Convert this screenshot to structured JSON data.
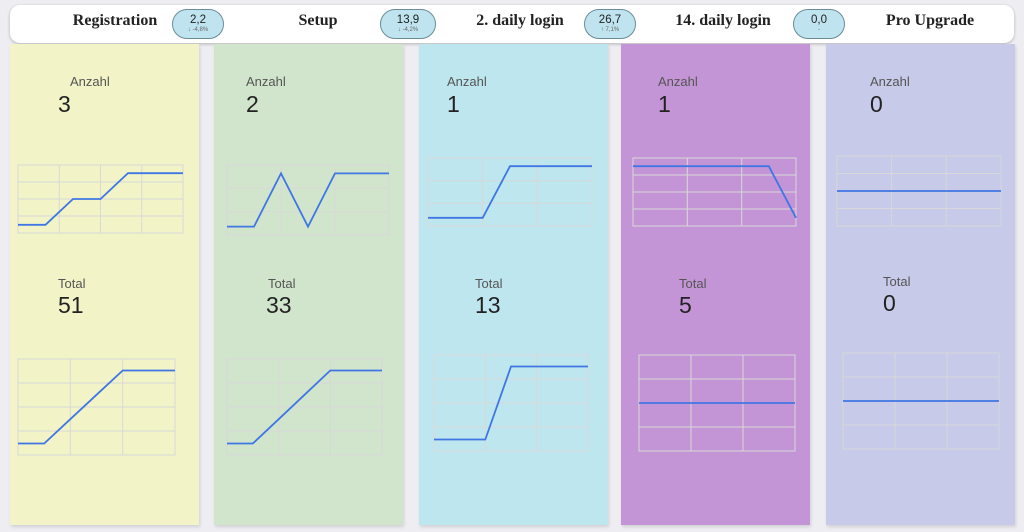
{
  "stages": [
    {
      "title": "Registration",
      "color": "#f2f4c8",
      "badge": {
        "value": "2,2",
        "delta": "↓ -4,8%"
      },
      "anzahl_label": "Anzahl",
      "anzahl_value": "3",
      "total_label": "Total",
      "total_value": "51",
      "spark1": [
        {
          "x": 0,
          "y": 0
        },
        {
          "x": 1,
          "y": 0
        },
        {
          "x": 2,
          "y": 1
        },
        {
          "x": 3,
          "y": 1
        },
        {
          "x": 4,
          "y": 2
        },
        {
          "x": 5,
          "y": 2
        },
        {
          "x": 6,
          "y": 2
        }
      ],
      "spark2": [
        {
          "x": 0,
          "y": 0
        },
        {
          "x": 1,
          "y": 0
        },
        {
          "x": 2,
          "y": 1
        },
        {
          "x": 3,
          "y": 2
        },
        {
          "x": 4,
          "y": 3
        },
        {
          "x": 5,
          "y": 3
        },
        {
          "x": 6,
          "y": 3
        }
      ]
    },
    {
      "title": "Setup",
      "color": "#d1e5cc",
      "badge": {
        "value": "13,9",
        "delta": "↓ -4,2%"
      },
      "anzahl_label": "Anzahl",
      "anzahl_value": "2",
      "total_label": "Total",
      "total_value": "33",
      "spark1": [
        {
          "x": 0,
          "y": 0
        },
        {
          "x": 1,
          "y": 0
        },
        {
          "x": 2,
          "y": 1
        },
        {
          "x": 3,
          "y": 0
        },
        {
          "x": 4,
          "y": 1
        },
        {
          "x": 5,
          "y": 1
        },
        {
          "x": 6,
          "y": 1
        }
      ],
      "spark2": [
        {
          "x": 0,
          "y": 0
        },
        {
          "x": 1,
          "y": 0
        },
        {
          "x": 2,
          "y": 1
        },
        {
          "x": 3,
          "y": 2
        },
        {
          "x": 4,
          "y": 3
        },
        {
          "x": 5,
          "y": 3
        },
        {
          "x": 6,
          "y": 3
        }
      ]
    },
    {
      "title": "2. daily login",
      "color": "#bee6ef",
      "badge": {
        "value": "26,7",
        "delta": "↑ 7,1%"
      },
      "anzahl_label": "Anzahl",
      "anzahl_value": "1",
      "total_label": "Total",
      "total_value": "13",
      "spark1": [
        {
          "x": 0,
          "y": 0
        },
        {
          "x": 1,
          "y": 0
        },
        {
          "x": 2,
          "y": 0
        },
        {
          "x": 3,
          "y": 1
        },
        {
          "x": 4,
          "y": 1
        },
        {
          "x": 5,
          "y": 1
        },
        {
          "x": 6,
          "y": 1
        }
      ],
      "spark2": [
        {
          "x": 0,
          "y": 0
        },
        {
          "x": 1,
          "y": 0
        },
        {
          "x": 2,
          "y": 0
        },
        {
          "x": 3,
          "y": 1
        },
        {
          "x": 4,
          "y": 1
        },
        {
          "x": 5,
          "y": 1
        },
        {
          "x": 6,
          "y": 1
        }
      ]
    },
    {
      "title": "14. daily login",
      "color": "#c495d6",
      "badge": {
        "value": "0,0",
        "delta": "-"
      },
      "anzahl_label": "Anzahl",
      "anzahl_value": "1",
      "total_label": "Total",
      "total_value": "5",
      "spark1": [
        {
          "x": 0,
          "y": 1
        },
        {
          "x": 1,
          "y": 1
        },
        {
          "x": 2,
          "y": 1
        },
        {
          "x": 3,
          "y": 1
        },
        {
          "x": 4,
          "y": 1
        },
        {
          "x": 5,
          "y": 1
        },
        {
          "x": 6,
          "y": 0
        }
      ],
      "spark2": [
        {
          "x": 0,
          "y": 1
        },
        {
          "x": 6,
          "y": 1
        }
      ]
    },
    {
      "title": "Pro Upgrade",
      "color": "#c7cae8",
      "badge": null,
      "anzahl_label": "Anzahl",
      "anzahl_value": "0",
      "total_label": "Total",
      "total_value": "0",
      "spark1": [
        {
          "x": 0,
          "y": 1
        },
        {
          "x": 6,
          "y": 1
        }
      ],
      "spark2": [
        {
          "x": 0,
          "y": 1
        },
        {
          "x": 6,
          "y": 1
        }
      ]
    }
  ]
}
